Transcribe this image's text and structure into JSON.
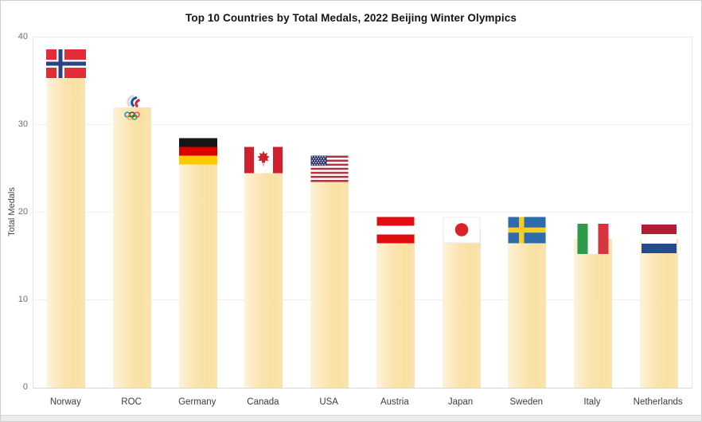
{
  "chart_data": {
    "type": "bar",
    "title": "Top 10 Countries by Total Medals, 2022 Beijing Winter Olympics",
    "ylabel": "Total Medals",
    "xlabel": "",
    "ylim": [
      0,
      40
    ],
    "yticks": [
      0,
      10,
      20,
      30,
      40
    ],
    "grid": true,
    "legend_position": "none",
    "categories": [
      "Norway",
      "ROC",
      "Germany",
      "Canada",
      "USA",
      "Austria",
      "Japan",
      "Sweden",
      "Italy",
      "Netherlands"
    ],
    "values": [
      37,
      32,
      27,
      26,
      25,
      18,
      18,
      18,
      17,
      17
    ],
    "markers": [
      "norway-flag",
      "roc-emblem",
      "germany-flag",
      "canada-flag",
      "usa-flag",
      "austria-flag",
      "japan-flag",
      "sweden-flag",
      "italy-flag",
      "netherlands-flag"
    ],
    "bar_color_gradient": [
      "#fdf3da",
      "#f9dfa2"
    ],
    "gridline_color": "#f0f0f0",
    "axis_line_color": "#d8d8d8",
    "tick_label_color": "#6d6d6d",
    "category_label_color": "#3c3c3c",
    "title_color": "#141414"
  }
}
